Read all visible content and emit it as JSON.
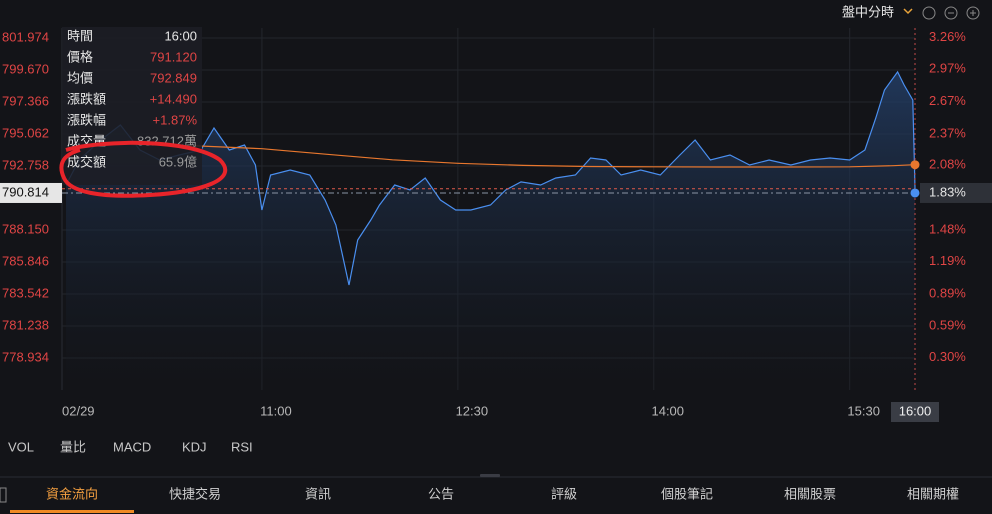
{
  "header": {
    "mode": "盤中分時"
  },
  "tooltip": {
    "rows": [
      [
        "時間",
        "16:00"
      ],
      [
        "價格",
        "791.120"
      ],
      [
        "均價",
        "792.849"
      ],
      [
        "漲跌額",
        "+14.490"
      ],
      [
        "漲跌幅",
        "+1.87%"
      ],
      [
        "成交量",
        "832.712萬"
      ],
      [
        "成交額",
        "65.9億"
      ]
    ]
  },
  "chart_data": {
    "type": "line",
    "xlim": [
      570,
      960
    ],
    "xticks": [
      {
        "value": 570,
        "label": "02/29"
      },
      {
        "value": 660,
        "label": "11:00"
      },
      {
        "value": 750,
        "label": "12:30"
      },
      {
        "value": 840,
        "label": "14:00"
      },
      {
        "value": 930,
        "label": "15:30"
      }
    ],
    "ylim": [
      776.63,
      802.69
    ],
    "yticks": [
      801.974,
      {
        "value": 799.67,
        "label": "799.670"
      },
      797.366,
      795.062,
      792.758,
      {
        "value": 788.15,
        "label": "788.150"
      },
      785.846,
      783.542,
      781.238,
      778.934
    ],
    "y2lim": [
      0.0,
      3.35
    ],
    "y2ticks": [
      {
        "value": 3.26,
        "label": "3.26%"
      },
      {
        "value": 2.97,
        "label": "2.97%"
      },
      {
        "value": 2.67,
        "label": "2.67%"
      },
      {
        "value": 2.37,
        "label": "2.37%"
      },
      {
        "value": 2.08,
        "label": "2.08%"
      },
      {
        "value": 1.48,
        "label": "1.48%"
      },
      {
        "value": 1.19,
        "label": "1.19%"
      },
      {
        "value": 0.89,
        "label": "0.89%"
      },
      {
        "value": 0.59,
        "label": "0.59%"
      },
      {
        "value": 0.3,
        "label": "0.30%"
      }
    ],
    "crosshair_y": 790.814,
    "crosshair_y2": {
      "value": 1.83,
      "label": "1.83%"
    },
    "crosshair_x": {
      "value": 960,
      "label": "16:00"
    },
    "grid": true,
    "series": [
      {
        "color": "#4a8ff0",
        "x": [
          570,
          576,
          586,
          595,
          604,
          613,
          622,
          632,
          638,
          645,
          652,
          657,
          660,
          664,
          673,
          682,
          689,
          694,
          700,
          704,
          710,
          714,
          721,
          728,
          735,
          742,
          749,
          756,
          765,
          772,
          779,
          788,
          795,
          804,
          811,
          818,
          825,
          834,
          843,
          852,
          859,
          866,
          875,
          884,
          893,
          903,
          912,
          921,
          930,
          937,
          942,
          946,
          952,
          955,
          959,
          960
        ],
        "values": [
          791.39,
          793.19,
          794.63,
          795.71,
          793.91,
          793.19,
          793.55,
          793.91,
          795.49,
          793.91,
          794.27,
          792.83,
          789.59,
          792.11,
          792.47,
          792.11,
          790.31,
          788.51,
          784.19,
          787.43,
          788.87,
          789.95,
          791.39,
          791.03,
          791.89,
          790.31,
          789.59,
          789.59,
          789.95,
          791.03,
          791.61,
          791.39,
          791.89,
          792.11,
          793.33,
          793.19,
          792.11,
          792.47,
          792.11,
          793.55,
          794.63,
          793.19,
          793.55,
          792.83,
          793.19,
          792.83,
          793.19,
          793.33,
          793.19,
          793.91,
          796.21,
          798.23,
          799.53,
          798.59,
          797.51,
          791.12
        ]
      },
      {
        "color": "#e8772e",
        "x": [
          600,
          630,
          660,
          690,
          720,
          750,
          780,
          810,
          840,
          870,
          900,
          930,
          950,
          960
        ],
        "values": [
          794.3,
          794.2,
          794.0,
          793.6,
          793.2,
          792.95,
          792.8,
          792.72,
          792.7,
          792.68,
          792.68,
          792.7,
          792.78,
          792.849
        ]
      }
    ]
  },
  "indicators": [
    "VOL",
    "量比",
    "MACD",
    "KDJ",
    "RSI"
  ],
  "tabs": [
    "資金流向",
    "快捷交易",
    "資訊",
    "公告",
    "評級",
    "個股筆記",
    "相關股票",
    "相關期權"
  ]
}
